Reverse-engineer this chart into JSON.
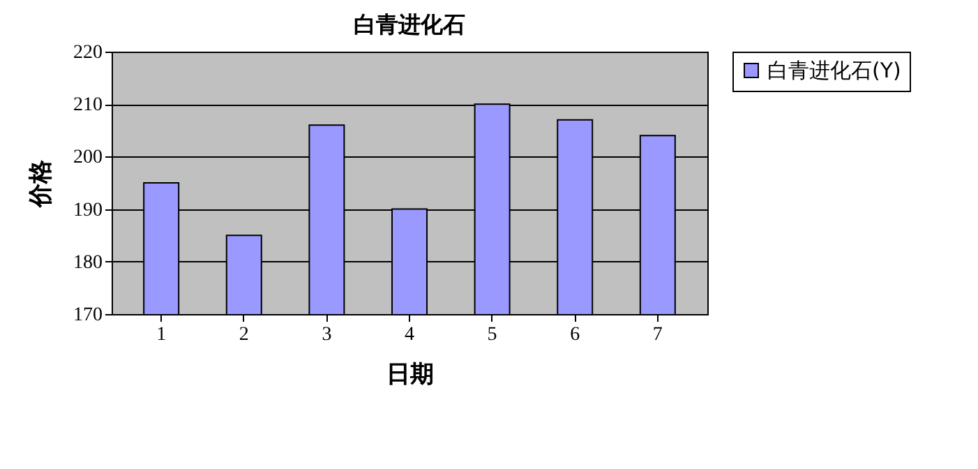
{
  "chart_data": {
    "type": "bar",
    "title": "白青进化石",
    "xlabel": "日期",
    "ylabel": "价格",
    "categories": [
      "1",
      "2",
      "3",
      "4",
      "5",
      "6",
      "7"
    ],
    "series": [
      {
        "name": "白青进化石(Y)",
        "color": "#9999ff",
        "values": [
          195,
          185,
          206,
          190,
          210,
          207,
          204
        ]
      }
    ],
    "ylim": [
      170,
      220
    ],
    "yticks": [
      170,
      180,
      190,
      200,
      210,
      220
    ],
    "grid": "y",
    "legend": "right"
  }
}
